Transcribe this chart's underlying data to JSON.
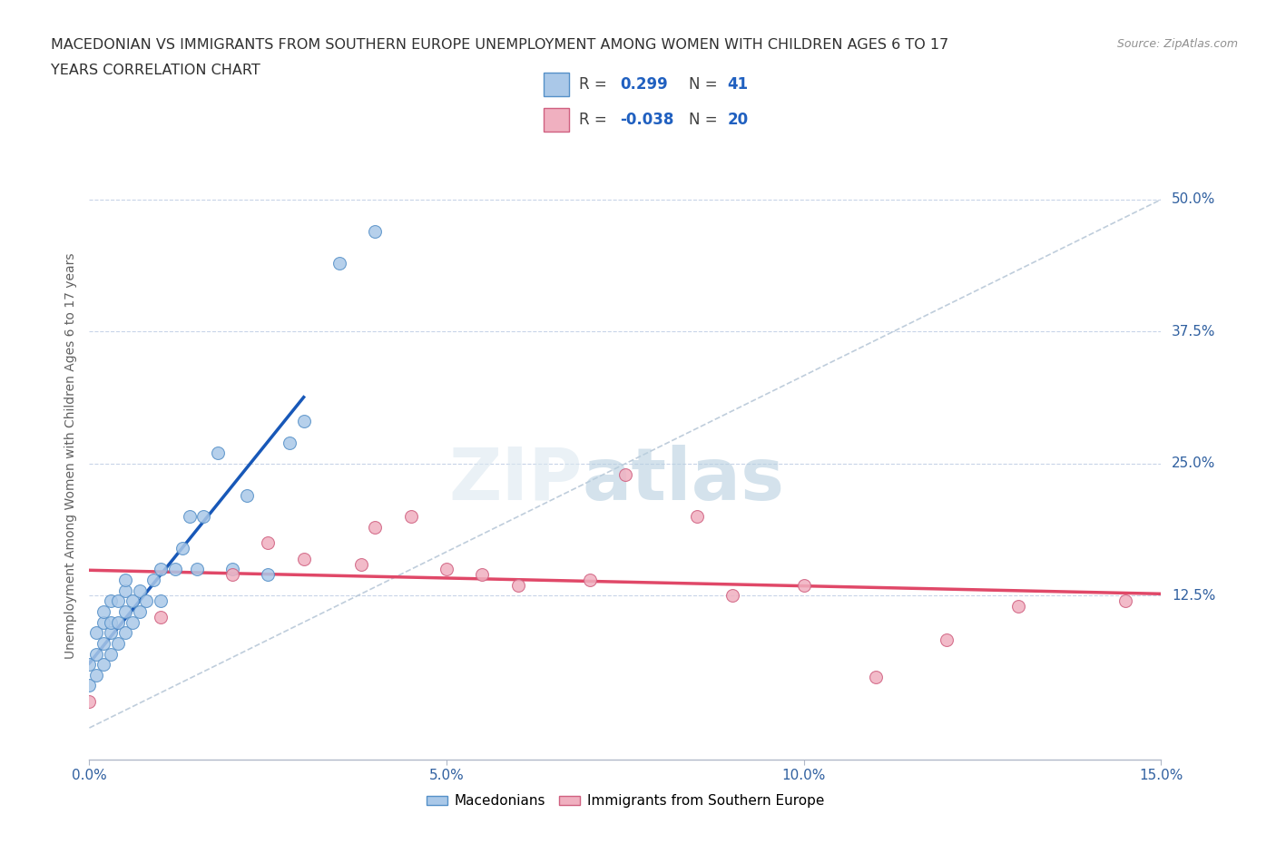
{
  "title_line1": "MACEDONIAN VS IMMIGRANTS FROM SOUTHERN EUROPE UNEMPLOYMENT AMONG WOMEN WITH CHILDREN AGES 6 TO 17",
  "title_line2": "YEARS CORRELATION CHART",
  "source": "Source: ZipAtlas.com",
  "ylabel": "Unemployment Among Women with Children Ages 6 to 17 years",
  "xlim": [
    0.0,
    0.15
  ],
  "ylim": [
    -0.03,
    0.545
  ],
  "ytick_vals": [
    0.0,
    0.125,
    0.25,
    0.375,
    0.5
  ],
  "ytick_labels": [
    "",
    "12.5%",
    "25.0%",
    "37.5%",
    "50.0%"
  ],
  "xtick_vals": [
    0.0,
    0.05,
    0.1,
    0.15
  ],
  "xtick_labels": [
    "0.0%",
    "5.0%",
    "10.0%",
    "15.0%"
  ],
  "background_color": "#ffffff",
  "grid_color": "#c8d4e8",
  "macedonian_fill": "#aac8e8",
  "macedonian_edge": "#5590c8",
  "immigrant_fill": "#f0b0c0",
  "immigrant_edge": "#d06080",
  "trend_blue": "#1858b8",
  "trend_pink": "#e04868",
  "diag_color": "#b8c8d8",
  "R_mac": 0.299,
  "N_mac": 41,
  "R_imm": -0.038,
  "N_imm": 20,
  "mac_x": [
    0.0,
    0.0,
    0.001,
    0.001,
    0.001,
    0.002,
    0.002,
    0.002,
    0.002,
    0.003,
    0.003,
    0.003,
    0.003,
    0.004,
    0.004,
    0.004,
    0.005,
    0.005,
    0.005,
    0.005,
    0.006,
    0.006,
    0.007,
    0.007,
    0.008,
    0.009,
    0.01,
    0.01,
    0.012,
    0.013,
    0.014,
    0.015,
    0.016,
    0.018,
    0.02,
    0.022,
    0.025,
    0.028,
    0.03,
    0.035,
    0.04
  ],
  "mac_y": [
    0.04,
    0.06,
    0.05,
    0.07,
    0.09,
    0.06,
    0.08,
    0.1,
    0.11,
    0.07,
    0.09,
    0.1,
    0.12,
    0.08,
    0.1,
    0.12,
    0.09,
    0.11,
    0.13,
    0.14,
    0.1,
    0.12,
    0.11,
    0.13,
    0.12,
    0.14,
    0.12,
    0.15,
    0.15,
    0.17,
    0.2,
    0.15,
    0.2,
    0.26,
    0.15,
    0.22,
    0.145,
    0.27,
    0.29,
    0.44,
    0.47
  ],
  "imm_x": [
    0.0,
    0.01,
    0.02,
    0.025,
    0.03,
    0.038,
    0.04,
    0.045,
    0.05,
    0.055,
    0.06,
    0.07,
    0.075,
    0.085,
    0.09,
    0.1,
    0.11,
    0.12,
    0.13,
    0.145
  ],
  "imm_y": [
    0.025,
    0.105,
    0.145,
    0.175,
    0.16,
    0.155,
    0.19,
    0.2,
    0.15,
    0.145,
    0.135,
    0.14,
    0.24,
    0.2,
    0.125,
    0.135,
    0.048,
    0.083,
    0.115,
    0.12
  ],
  "legend_R_color": "#2060c0",
  "legend_N_color": "#2060c0"
}
